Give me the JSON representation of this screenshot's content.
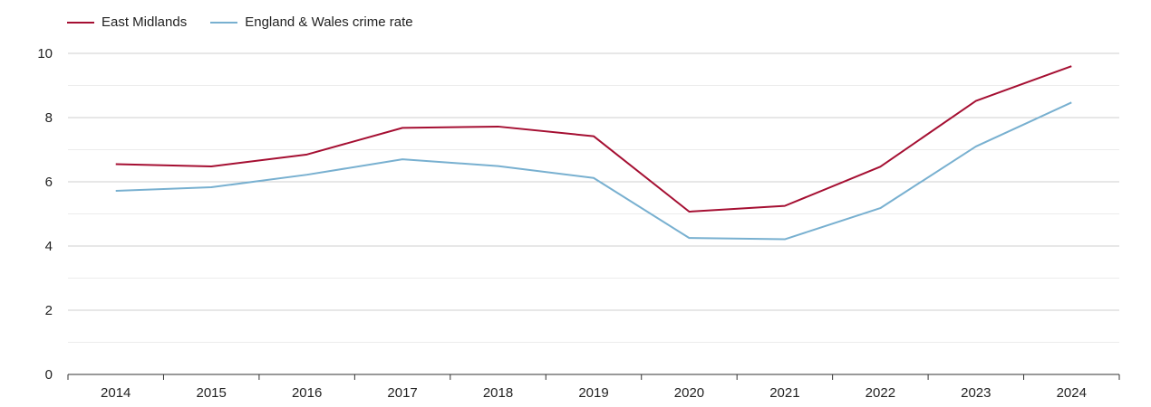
{
  "chart_data": {
    "type": "line",
    "title": "",
    "xlabel": "",
    "ylabel": "",
    "categories": [
      "2014",
      "2015",
      "2016",
      "2017",
      "2018",
      "2019",
      "2020",
      "2021",
      "2022",
      "2023",
      "2024"
    ],
    "ylim": [
      0,
      10
    ],
    "yticks": [
      0,
      2,
      4,
      6,
      8,
      10
    ],
    "ytick_labels": [
      "0",
      "2",
      "4",
      "6",
      "8",
      "10"
    ],
    "grid": true,
    "legend_position": "top-left",
    "series": [
      {
        "name": "East Midlands",
        "color": "#a50f32",
        "values": [
          6.55,
          6.48,
          6.85,
          7.68,
          7.72,
          7.42,
          5.07,
          5.25,
          6.47,
          8.52,
          9.6
        ]
      },
      {
        "name": "England & Wales crime rate",
        "color": "#78b0d0",
        "values": [
          5.72,
          5.83,
          6.22,
          6.7,
          6.49,
          6.12,
          4.25,
          4.21,
          5.18,
          7.1,
          8.47
        ]
      }
    ]
  }
}
